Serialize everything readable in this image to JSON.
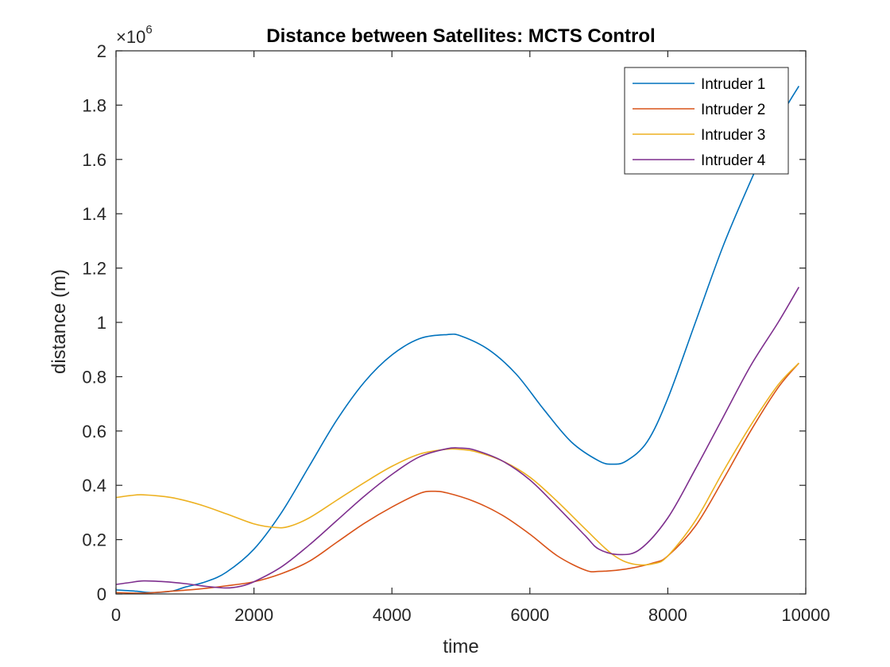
{
  "chart_data": {
    "type": "line",
    "title": "Distance between Satellites: MCTS Control",
    "xlabel": "time",
    "ylabel": "distance (m)",
    "xlim": [
      0,
      10000
    ],
    "ylim": [
      0,
      2000000
    ],
    "xticks": [
      0,
      2000,
      4000,
      6000,
      8000,
      10000
    ],
    "xtick_labels": [
      "0",
      "2000",
      "4000",
      "6000",
      "8000",
      "10000"
    ],
    "yticks": [
      0,
      200000,
      400000,
      600000,
      800000,
      1000000,
      1200000,
      1400000,
      1600000,
      1800000,
      2000000
    ],
    "ytick_labels": [
      "0",
      "0.2",
      "0.4",
      "0.6",
      "0.8",
      "1",
      "1.2",
      "1.4",
      "1.6",
      "1.8",
      "2"
    ],
    "y_exponent_label": "×10",
    "y_exponent_power": "6",
    "grid": false,
    "legend_position": "top-right",
    "series": [
      {
        "name": "Intruder 1",
        "color": "#0072BD",
        "x": [
          0,
          300,
          500,
          800,
          1000,
          1300,
          1600,
          2000,
          2400,
          2800,
          3200,
          3600,
          4000,
          4400,
          4800,
          5000,
          5400,
          5800,
          6200,
          6600,
          7000,
          7200,
          7400,
          7700,
          8000,
          8400,
          8800,
          9200,
          9600,
          9900
        ],
        "y": [
          15000,
          10000,
          5000,
          10000,
          25000,
          45000,
          80000,
          165000,
          300000,
          470000,
          640000,
          780000,
          880000,
          940000,
          955000,
          950000,
          900000,
          810000,
          680000,
          560000,
          490000,
          478000,
          490000,
          560000,
          720000,
          1000000,
          1280000,
          1520000,
          1740000,
          1870000
        ]
      },
      {
        "name": "Intruder 2",
        "color": "#D95319",
        "x": [
          0,
          400,
          800,
          1200,
          1600,
          2000,
          2400,
          2800,
          3200,
          3600,
          4000,
          4400,
          4600,
          4800,
          5200,
          5600,
          6000,
          6400,
          6800,
          7000,
          7400,
          7800,
          8000,
          8400,
          8800,
          9200,
          9600,
          9900
        ],
        "y": [
          5000,
          3000,
          10000,
          18000,
          30000,
          45000,
          75000,
          120000,
          190000,
          260000,
          320000,
          370000,
          378000,
          372000,
          340000,
          290000,
          220000,
          140000,
          88000,
          83000,
          92000,
          115000,
          140000,
          250000,
          420000,
          600000,
          760000,
          850000
        ]
      },
      {
        "name": "Intruder 3",
        "color": "#EDB120",
        "x": [
          0,
          200,
          400,
          800,
          1200,
          1600,
          2000,
          2300,
          2500,
          2800,
          3200,
          3600,
          4000,
          4400,
          4800,
          5000,
          5200,
          5600,
          6000,
          6400,
          6800,
          7200,
          7500,
          7800,
          8000,
          8400,
          8800,
          9200,
          9600,
          9900
        ],
        "y": [
          355000,
          362000,
          365000,
          355000,
          330000,
          295000,
          258000,
          245000,
          248000,
          280000,
          345000,
          410000,
          470000,
          515000,
          533000,
          532000,
          525000,
          490000,
          430000,
          340000,
          240000,
          145000,
          110000,
          112000,
          140000,
          270000,
          450000,
          620000,
          770000,
          850000
        ]
      },
      {
        "name": "Intruder 4",
        "color": "#7E2F8E",
        "x": [
          0,
          200,
          400,
          700,
          1000,
          1300,
          1600,
          1800,
          2000,
          2400,
          2800,
          3200,
          3600,
          4000,
          4400,
          4800,
          5000,
          5200,
          5600,
          6000,
          6400,
          6800,
          7000,
          7300,
          7600,
          8000,
          8400,
          8800,
          9200,
          9600,
          9900
        ],
        "y": [
          35000,
          42000,
          48000,
          45000,
          38000,
          28000,
          22000,
          28000,
          45000,
          100000,
          180000,
          270000,
          360000,
          440000,
          505000,
          535000,
          537000,
          530000,
          490000,
          420000,
          320000,
          215000,
          165000,
          145000,
          165000,
          280000,
          460000,
          650000,
          840000,
          1000000,
          1130000
        ]
      }
    ]
  }
}
